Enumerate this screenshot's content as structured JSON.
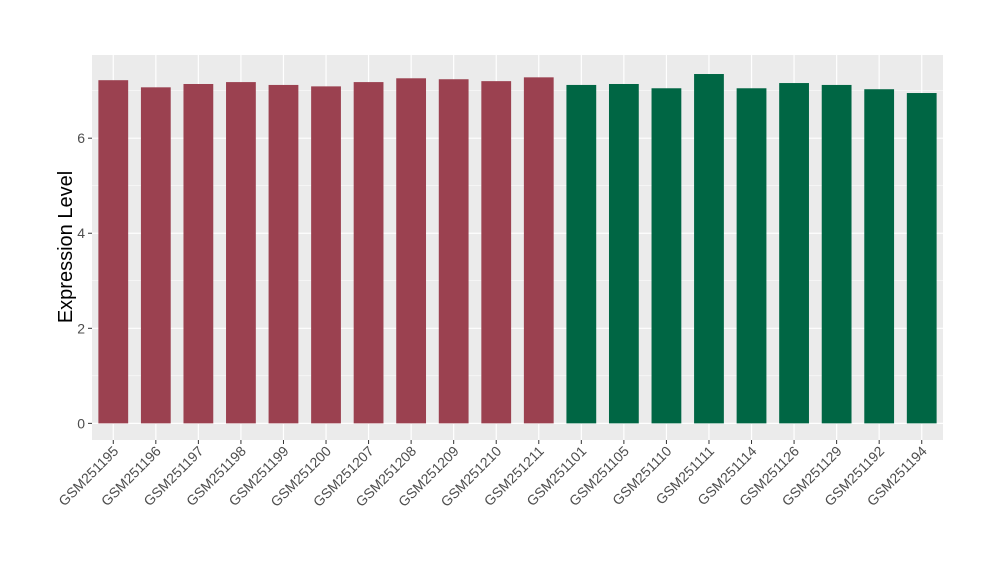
{
  "chart_data": {
    "type": "bar",
    "title": "",
    "xlabel": "",
    "ylabel": "Expression Level",
    "ylim": [
      -0.35,
      7.75
    ],
    "yticks": [
      0,
      2,
      4,
      6
    ],
    "grid": true,
    "categories": [
      "GSM251195",
      "GSM251196",
      "GSM251197",
      "GSM251198",
      "GSM251199",
      "GSM251200",
      "GSM251207",
      "GSM251208",
      "GSM251209",
      "GSM251210",
      "GSM251211",
      "GSM251101",
      "GSM251105",
      "GSM251110",
      "GSM251111",
      "GSM251114",
      "GSM251126",
      "GSM251129",
      "GSM251192",
      "GSM251194"
    ],
    "values": [
      7.22,
      7.07,
      7.14,
      7.18,
      7.12,
      7.09,
      7.18,
      7.26,
      7.24,
      7.2,
      7.28,
      7.12,
      7.14,
      7.05,
      7.35,
      7.05,
      7.16,
      7.12,
      7.03,
      6.95
    ],
    "groups": [
      "A",
      "A",
      "A",
      "A",
      "A",
      "A",
      "A",
      "A",
      "A",
      "A",
      "A",
      "B",
      "B",
      "B",
      "B",
      "B",
      "B",
      "B",
      "B",
      "B"
    ],
    "colors": {
      "A": "#9b4150",
      "B": "#006644"
    },
    "panel_color": "#ebebeb"
  }
}
